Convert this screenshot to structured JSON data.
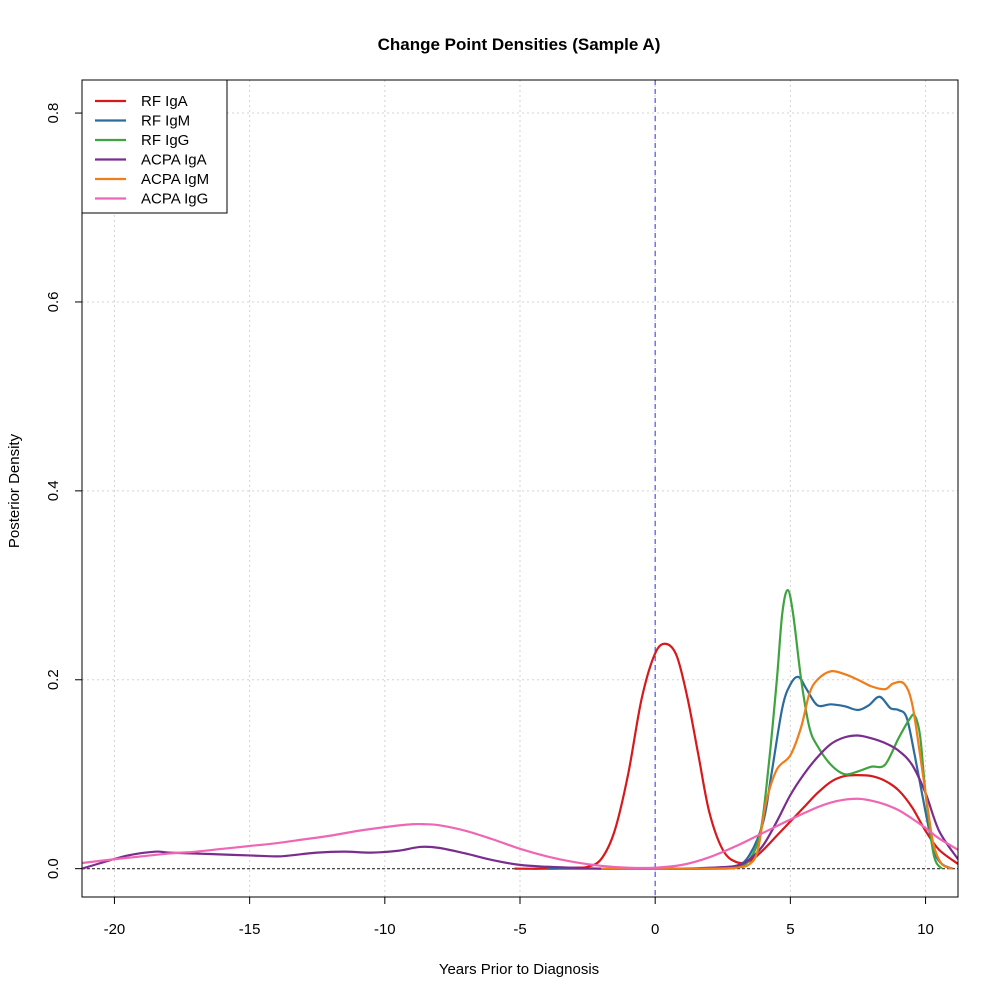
{
  "chart_data": {
    "type": "line",
    "title": "Change Point Densities (Sample A)",
    "xlabel": "Years Prior to Diagnosis",
    "ylabel": "Posterior Density",
    "xlim": [
      -21.2,
      11.2
    ],
    "ylim": [
      -0.03,
      0.835
    ],
    "x_ticks": [
      -20,
      -15,
      -10,
      -5,
      0,
      5,
      10
    ],
    "y_ticks": [
      0.0,
      0.2,
      0.4,
      0.6,
      0.8
    ],
    "x_tick_labels": [
      "-20",
      "-15",
      "-10",
      "-5",
      "0",
      "5",
      "10"
    ],
    "y_tick_labels": [
      "0.0",
      "0.2",
      "0.4",
      "0.6",
      "0.8"
    ],
    "grid": true,
    "legend_position": "top-left",
    "reference_lines": [
      {
        "orientation": "vertical",
        "x": 0,
        "style": "dashed",
        "color": "#4f4fff"
      },
      {
        "orientation": "horizontal",
        "y": 0,
        "style": "dotted",
        "color": "#333333"
      }
    ],
    "series": [
      {
        "name": "RF IgA",
        "color": "#d7191c",
        "x": [
          -5.2,
          -4,
          -3,
          -2.5,
          -2,
          -1.5,
          -1,
          -0.5,
          0,
          0.4,
          0.8,
          1.2,
          1.6,
          2,
          2.5,
          3,
          3.5,
          4,
          4.5,
          5,
          5.5,
          6,
          6.5,
          7,
          7.5,
          8,
          8.5,
          9,
          9.5,
          10,
          10.5,
          11.2
        ],
        "y": [
          0.0,
          0.0,
          0.001,
          0.002,
          0.01,
          0.04,
          0.1,
          0.18,
          0.228,
          0.238,
          0.225,
          0.18,
          0.12,
          0.06,
          0.02,
          0.007,
          0.008,
          0.02,
          0.035,
          0.05,
          0.065,
          0.08,
          0.092,
          0.098,
          0.099,
          0.098,
          0.093,
          0.083,
          0.065,
          0.04,
          0.02,
          0.005
        ]
      },
      {
        "name": "RF IgM",
        "color": "#2c6b9e",
        "x": [
          -4,
          0,
          2,
          3,
          3.5,
          4,
          4.3,
          4.7,
          5,
          5.3,
          5.6,
          6,
          6.5,
          7,
          7.5,
          7.9,
          8.3,
          8.7,
          9,
          9.3,
          9.6,
          10,
          10.3,
          10.6,
          11
        ],
        "y": [
          0.0,
          0.0,
          0.0,
          0.003,
          0.015,
          0.05,
          0.1,
          0.17,
          0.195,
          0.203,
          0.19,
          0.173,
          0.174,
          0.172,
          0.168,
          0.173,
          0.182,
          0.17,
          0.168,
          0.16,
          0.12,
          0.06,
          0.02,
          0.005,
          0.0
        ]
      },
      {
        "name": "RF IgG",
        "color": "#3fa33f",
        "x": [
          -2,
          0,
          2,
          3,
          3.5,
          3.9,
          4.2,
          4.5,
          4.7,
          4.9,
          5.1,
          5.4,
          5.7,
          6,
          6.5,
          7,
          7.5,
          8,
          8.5,
          9,
          9.4,
          9.6,
          9.8,
          10,
          10.3,
          10.6
        ],
        "y": [
          0.0,
          0.0,
          0.0,
          0.001,
          0.01,
          0.04,
          0.11,
          0.2,
          0.27,
          0.295,
          0.27,
          0.2,
          0.15,
          0.13,
          0.11,
          0.1,
          0.103,
          0.108,
          0.11,
          0.138,
          0.158,
          0.162,
          0.14,
          0.08,
          0.015,
          0.0
        ]
      },
      {
        "name": "ACPA IgA",
        "color": "#7b2d8e",
        "x": [
          -21.2,
          -20.5,
          -19.5,
          -18.5,
          -18,
          -17,
          -16,
          -15,
          -14,
          -13.5,
          -12.5,
          -11.5,
          -10.5,
          -9.5,
          -8.7,
          -8,
          -7,
          -6,
          -5,
          -4,
          -3,
          -2,
          -1,
          0,
          1,
          2,
          3,
          3.5,
          4,
          4.5,
          5,
          5.5,
          6,
          6.5,
          7,
          7.5,
          8,
          8.5,
          9,
          9.5,
          10,
          10.5,
          11.2
        ],
        "y": [
          0.0,
          0.006,
          0.014,
          0.018,
          0.017,
          0.016,
          0.015,
          0.014,
          0.013,
          0.014,
          0.017,
          0.018,
          0.017,
          0.019,
          0.023,
          0.022,
          0.016,
          0.009,
          0.004,
          0.002,
          0.001,
          0.0,
          0.0,
          0.0,
          0.0,
          0.001,
          0.003,
          0.01,
          0.025,
          0.05,
          0.078,
          0.1,
          0.118,
          0.132,
          0.139,
          0.141,
          0.138,
          0.133,
          0.125,
          0.11,
          0.08,
          0.04,
          0.01
        ]
      },
      {
        "name": "ACPA IgM",
        "color": "#f07d1a",
        "x": [
          -2,
          0,
          2,
          3,
          3.5,
          3.8,
          4.1,
          4.5,
          5,
          5.4,
          5.7,
          6,
          6.5,
          7,
          7.5,
          8,
          8.5,
          8.8,
          9.2,
          9.5,
          9.8,
          10.1,
          10.3,
          10.6,
          11
        ],
        "y": [
          0.0,
          0.0,
          0.0,
          0.001,
          0.005,
          0.02,
          0.07,
          0.105,
          0.12,
          0.15,
          0.185,
          0.2,
          0.209,
          0.206,
          0.2,
          0.193,
          0.19,
          0.196,
          0.196,
          0.175,
          0.12,
          0.06,
          0.025,
          0.005,
          0.0
        ]
      },
      {
        "name": "ACPA IgG",
        "color": "#ef66b4",
        "x": [
          -21.2,
          -20,
          -19,
          -18,
          -17,
          -16,
          -15,
          -14,
          -13,
          -12,
          -11,
          -10,
          -9,
          -8.5,
          -8,
          -7,
          -6,
          -5,
          -4,
          -3,
          -2,
          -1,
          0,
          1,
          2,
          3,
          4,
          5,
          6,
          6.5,
          7,
          7.5,
          8,
          8.5,
          9,
          9.5,
          10,
          10.5,
          11.2
        ],
        "y": [
          0.006,
          0.01,
          0.013,
          0.016,
          0.018,
          0.021,
          0.024,
          0.027,
          0.031,
          0.035,
          0.04,
          0.044,
          0.047,
          0.047,
          0.046,
          0.04,
          0.031,
          0.021,
          0.013,
          0.007,
          0.003,
          0.001,
          0.001,
          0.004,
          0.012,
          0.024,
          0.038,
          0.052,
          0.065,
          0.07,
          0.073,
          0.074,
          0.072,
          0.068,
          0.062,
          0.053,
          0.043,
          0.032,
          0.02
        ]
      }
    ]
  }
}
